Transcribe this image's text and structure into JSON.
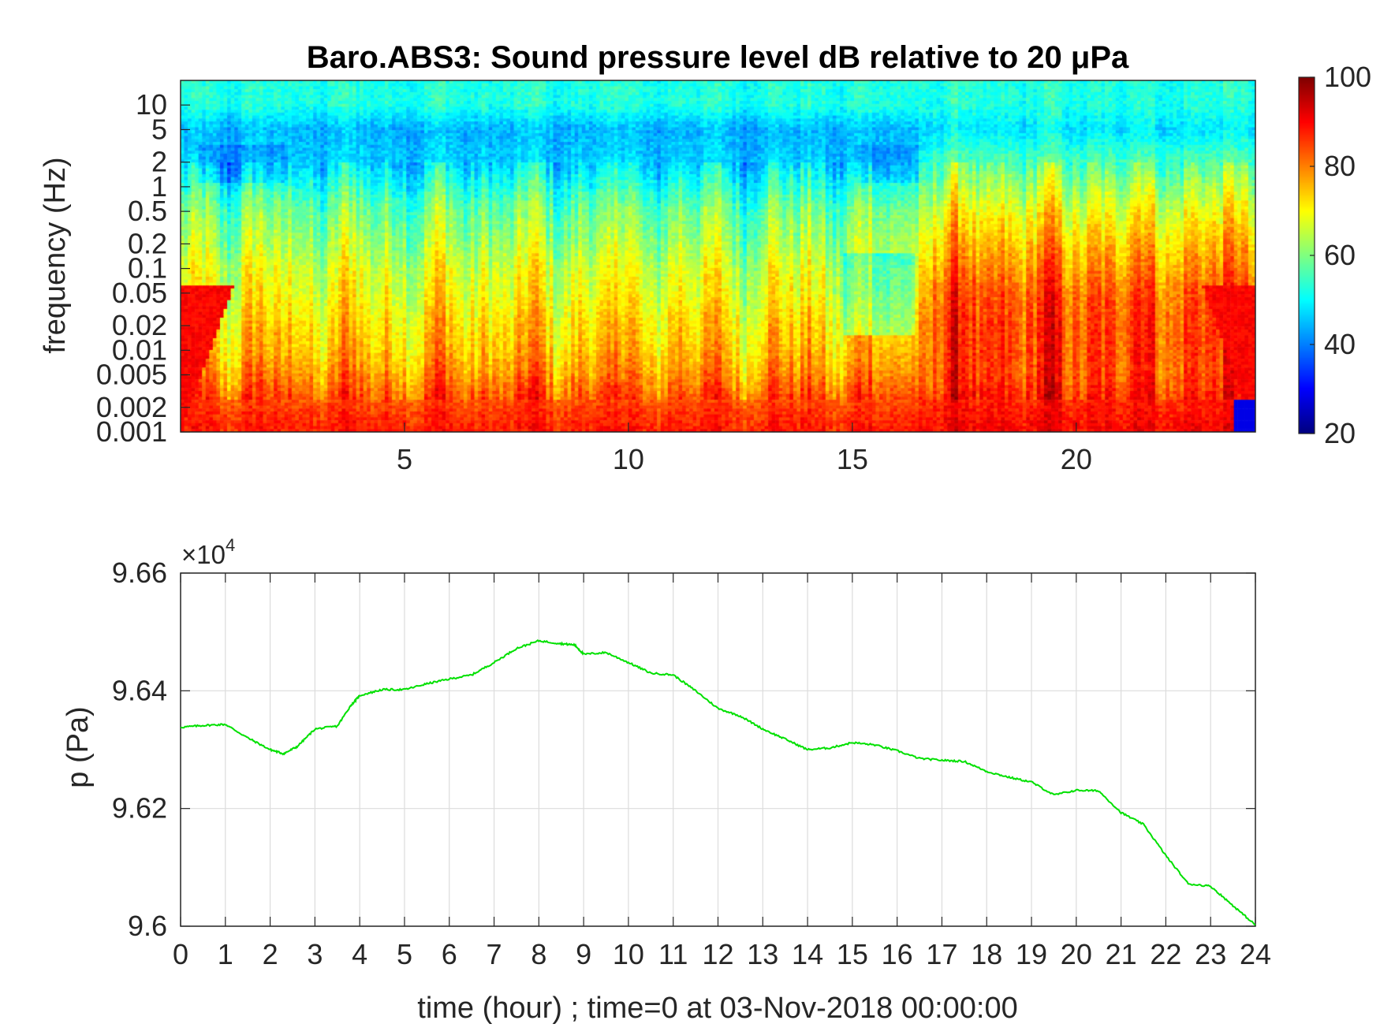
{
  "chart_data": [
    {
      "type": "heatmap",
      "title": "Baro.ABS3: Sound pressure level dB relative to 20 μPa",
      "ylabel": "frequency (Hz)",
      "xlabel": "",
      "xlim": [
        0,
        24
      ],
      "x_ticks": [
        5,
        10,
        15,
        20
      ],
      "x_tick_labels": [
        "5",
        "10",
        "15",
        "20"
      ],
      "y_scale": "log",
      "ylim": [
        0.001,
        20
      ],
      "y_ticks": [
        0.001,
        0.002,
        0.005,
        0.01,
        0.02,
        0.05,
        0.1,
        0.2,
        0.5,
        1,
        2,
        5,
        10
      ],
      "y_tick_labels": [
        "0.001",
        "0.002",
        "0.005",
        "0.01",
        "0.02",
        "0.05",
        "0.1",
        "0.2",
        "0.5",
        "1",
        "2",
        "5",
        "10"
      ],
      "colormap": "jet",
      "colorbar": {
        "range": [
          20,
          100
        ],
        "ticks": [
          20,
          40,
          60,
          80,
          100
        ],
        "tick_labels": [
          "20",
          "40",
          "60",
          "80",
          "100"
        ]
      },
      "level_profile_db": {
        "frequency_hz": [
          0.001,
          0.002,
          0.005,
          0.01,
          0.02,
          0.05,
          0.1,
          0.2,
          0.5,
          1,
          2,
          5,
          10
        ],
        "quiet_period_hours_0_to_16.5": [
          88,
          85,
          78,
          74,
          72,
          68,
          66,
          62,
          58,
          52,
          46,
          44,
          52
        ],
        "active_period_hours_16.5_to_24": [
          90,
          88,
          84,
          84,
          84,
          82,
          78,
          74,
          68,
          62,
          56,
          48,
          52
        ]
      },
      "grid": false
    },
    {
      "type": "line",
      "title": "",
      "xlabel": "time (hour) ; time=0 at 03-Nov-2018 00:00:00",
      "ylabel": "p (Pa)",
      "xlim": [
        0,
        24
      ],
      "ylim": [
        96000,
        96600
      ],
      "x_ticks": [
        0,
        1,
        2,
        3,
        4,
        5,
        6,
        7,
        8,
        9,
        10,
        11,
        12,
        13,
        14,
        15,
        16,
        17,
        18,
        19,
        20,
        21,
        22,
        23,
        24
      ],
      "x_tick_labels": [
        "0",
        "1",
        "2",
        "3",
        "4",
        "5",
        "6",
        "7",
        "8",
        "9",
        "10",
        "11",
        "12",
        "13",
        "14",
        "15",
        "16",
        "17",
        "18",
        "19",
        "20",
        "21",
        "22",
        "23",
        "24"
      ],
      "y_ticks": [
        96000,
        96200,
        96400,
        96600
      ],
      "y_tick_labels": [
        "9.6",
        "9.62",
        "9.64",
        "9.66"
      ],
      "y_exponent_label": "×10",
      "y_exponent_power": "4",
      "grid": true,
      "line_color": "#00e000",
      "series": [
        {
          "x": [
            0,
            0.5,
            1,
            1.5,
            2,
            2.3,
            2.6,
            3,
            3.5,
            3.8,
            4,
            4.5,
            5,
            5.5,
            6,
            6.5,
            7,
            7.5,
            8,
            8.5,
            8.8,
            9,
            9.5,
            10,
            10.5,
            11,
            11.5,
            12,
            12.5,
            13,
            13.5,
            14,
            14.5,
            15,
            15.5,
            16,
            16.5,
            17,
            17.5,
            18,
            18.5,
            19,
            19.5,
            20,
            20.5,
            21,
            21.5,
            22,
            22.5,
            23,
            23.5,
            24
          ],
          "y": [
            96338,
            96341,
            96343,
            96320,
            96300,
            96293,
            96305,
            96335,
            96340,
            96375,
            96392,
            96402,
            96402,
            96412,
            96420,
            96427,
            96448,
            96472,
            96485,
            96480,
            96478,
            96462,
            96465,
            96448,
            96430,
            96427,
            96400,
            96370,
            96357,
            96335,
            96318,
            96300,
            96303,
            96312,
            96308,
            96298,
            96285,
            96282,
            96280,
            96263,
            96253,
            96245,
            96223,
            96231,
            96230,
            96193,
            96173,
            96120,
            96072,
            96068,
            96035,
            96002
          ]
        }
      ]
    }
  ]
}
